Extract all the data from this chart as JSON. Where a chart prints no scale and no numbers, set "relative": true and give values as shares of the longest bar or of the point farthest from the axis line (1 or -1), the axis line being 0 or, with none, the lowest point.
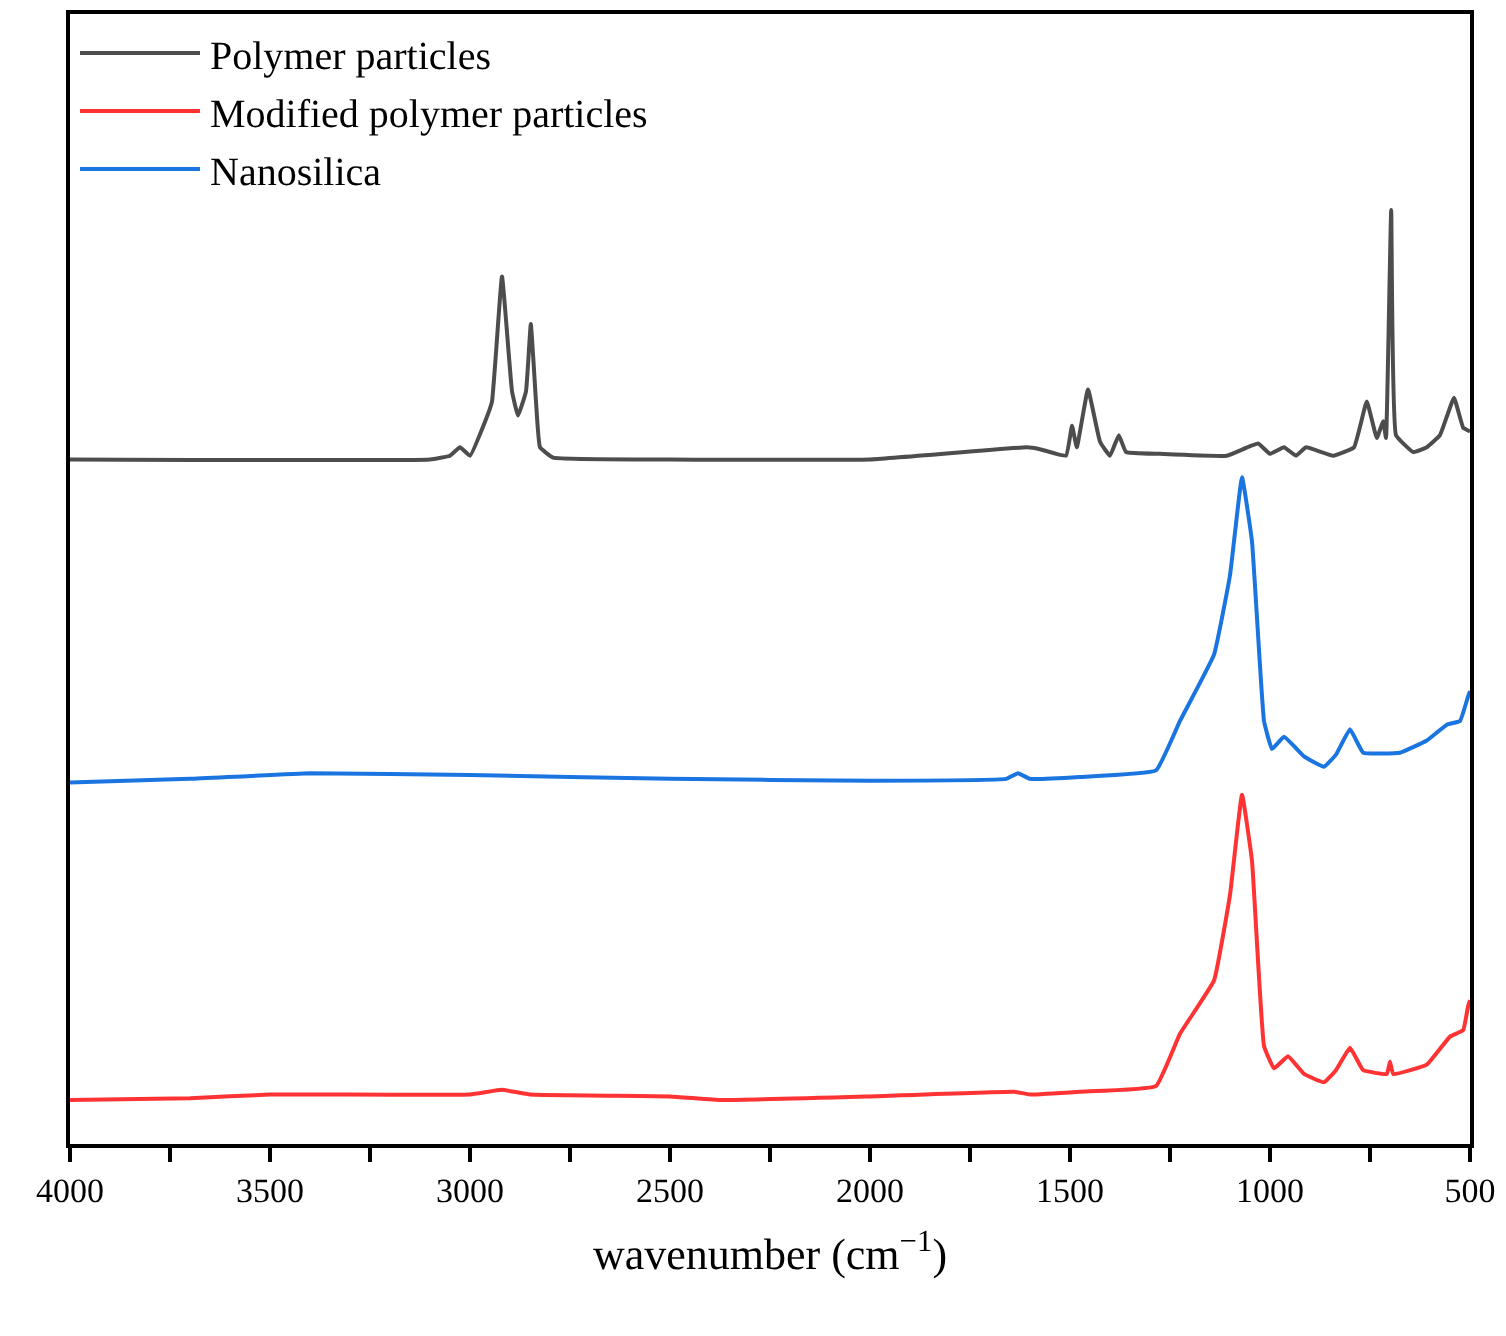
{
  "chart_data": {
    "type": "line",
    "xlabel": "wavenumber (cm$^{−1}$)",
    "relative": true,
    "legend": "top left",
    "marker": "none",
    "line_style": "solid",
    "xlim": [
      4000,
      500
    ],
    "xticks": [
      4000,
      {
        "value": 3750,
        "label": null
      },
      3500,
      {
        "value": 3250,
        "label": null
      },
      3000,
      {
        "value": 2750,
        "label": null
      },
      2500,
      {
        "value": 2250,
        "label": null
      },
      2000,
      {
        "value": 1750,
        "label": null
      },
      1500,
      {
        "value": 1250,
        "label": null
      },
      1000,
      {
        "value": 750,
        "label": null
      },
      500
    ],
    "tick_labels": "x",
    "series": [
      {
        "name": "Polymer particles",
        "color": "#4d4d4d",
        "x": [
          4000,
          3100,
          3050,
          3025,
          3000,
          2962,
          2945,
          2920,
          2895,
          2880,
          2860,
          2848,
          2835,
          2825,
          2792,
          2500,
          2000,
          1608,
          1575,
          1510,
          1495,
          1483,
          1455,
          1425,
          1400,
          1378,
          1360,
          1275,
          1108,
          1030,
          1000,
          965,
          935,
          910,
          842,
          790,
          758,
          733,
          717,
          710,
          697,
          685,
          642,
          608,
          575,
          540,
          517,
          500
        ],
        "values": [
          0.733,
          0.733,
          0.737,
          0.746,
          0.737,
          0.774,
          0.795,
          0.929,
          0.806,
          0.78,
          0.806,
          0.878,
          0.795,
          0.746,
          0.735,
          0.733,
          0.733,
          0.746,
          0.744,
          0.737,
          0.769,
          0.746,
          0.808,
          0.752,
          0.737,
          0.759,
          0.741,
          0.739,
          0.737,
          0.75,
          0.739,
          0.746,
          0.737,
          0.746,
          0.737,
          0.746,
          0.795,
          0.756,
          0.774,
          0.756,
          1.0,
          0.759,
          0.741,
          0.746,
          0.759,
          0.799,
          0.767,
          0.763
        ]
      },
      {
        "name": "Modified polymer particles",
        "color": "#ff3333",
        "x": [
          4000,
          3700,
          3500,
          3000,
          2920,
          2850,
          2500,
          2370,
          2000,
          1640,
          1600,
          1475,
          1285,
          1225,
          1140,
          1100,
          1070,
          1045,
          1015,
          990,
          955,
          915,
          865,
          835,
          800,
          767,
          708,
          700,
          692,
          608,
          550,
          517,
          505,
          500
        ],
        "values": [
          0.047,
          0.049,
          0.053,
          0.053,
          0.058,
          0.053,
          0.051,
          0.047,
          0.051,
          0.056,
          0.053,
          0.056,
          0.062,
          0.118,
          0.175,
          0.267,
          0.374,
          0.303,
          0.105,
          0.081,
          0.094,
          0.075,
          0.066,
          0.079,
          0.103,
          0.079,
          0.075,
          0.088,
          0.075,
          0.085,
          0.115,
          0.122,
          0.147,
          0.154
        ]
      },
      {
        "name": "Nanosilica",
        "color": "#1a75e0",
        "x": [
          4000,
          3700,
          3400,
          3000,
          2500,
          2000,
          1660,
          1630,
          1600,
          1475,
          1285,
          1225,
          1140,
          1100,
          1070,
          1045,
          1015,
          995,
          965,
          915,
          865,
          835,
          800,
          767,
          675,
          608,
          558,
          525,
          505,
          500
        ],
        "values": [
          0.387,
          0.391,
          0.397,
          0.395,
          0.391,
          0.389,
          0.391,
          0.397,
          0.391,
          0.393,
          0.4,
          0.453,
          0.524,
          0.609,
          0.714,
          0.645,
          0.453,
          0.423,
          0.436,
          0.415,
          0.404,
          0.417,
          0.444,
          0.419,
          0.419,
          0.432,
          0.449,
          0.453,
          0.479,
          0.485
        ]
      }
    ]
  }
}
